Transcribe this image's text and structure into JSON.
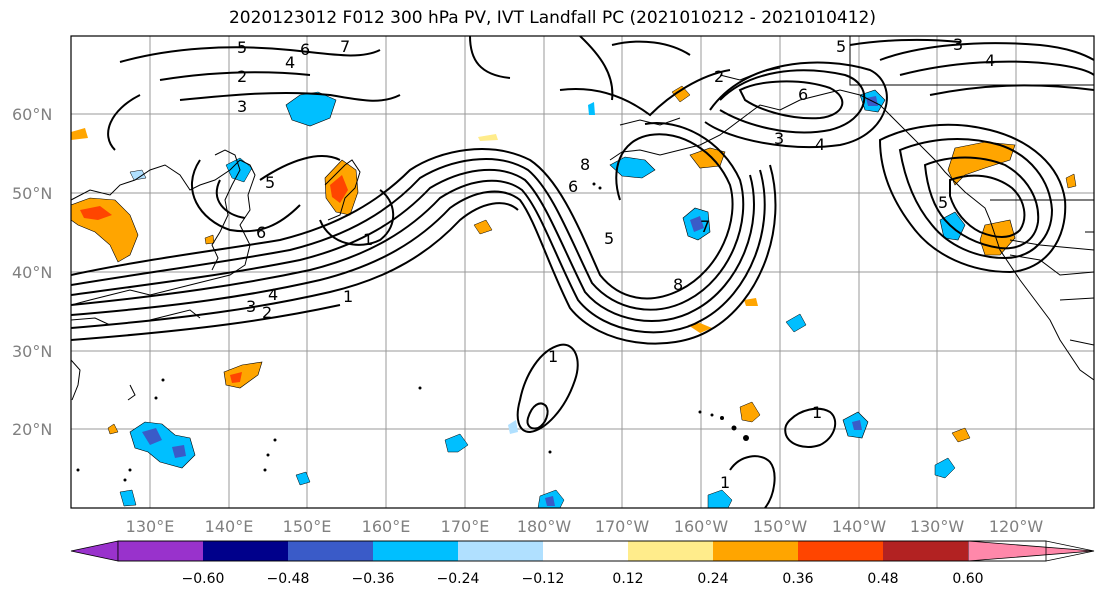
{
  "title": "2020123012 F012 300 hPa PV, IVT Landfall PC (2021010212 - 2021010412)",
  "map": {
    "lat_ticks": [
      "60°N",
      "50°N",
      "40°N",
      "30°N",
      "20°N"
    ],
    "lon_ticks": [
      "130°E",
      "140°E",
      "150°E",
      "160°E",
      "170°E",
      "180°W",
      "170°W",
      "160°W",
      "150°W",
      "140°W",
      "130°W",
      "120°W"
    ],
    "contour_labels": [
      "5",
      "6",
      "7",
      "4",
      "2",
      "3",
      "5",
      "6",
      "1",
      "3",
      "4",
      "2",
      "1",
      "8",
      "6",
      "5",
      "7",
      "8",
      "2",
      "3",
      "6",
      "4",
      "5",
      "3",
      "4",
      "5",
      "1",
      "1",
      "1"
    ]
  },
  "colorbar": {
    "colors": [
      "#9932cc",
      "#00008b",
      "#3a5bc8",
      "#00bfff",
      "#b0e0ff",
      "#ffffff",
      "#ffec8b",
      "#ffa500",
      "#ff4500",
      "#b22222",
      "#ff88aa"
    ],
    "tick_labels": [
      "−0.60",
      "−0.48",
      "−0.36",
      "−0.24",
      "−0.12",
      "0.12",
      "0.24",
      "0.36",
      "0.48",
      "0.60"
    ]
  }
}
